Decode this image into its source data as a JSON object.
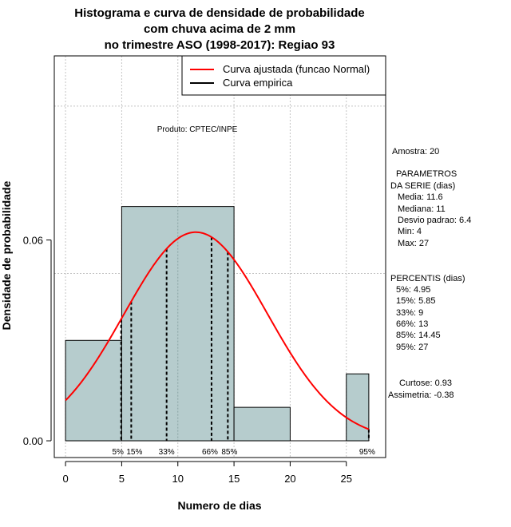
{
  "chart_data": {
    "type": "histogram",
    "title_lines": [
      "Histograma e curva de densidade de probabilidade",
      "com chuva acima de 2 mm",
      "no trimestre ASO (1998-2017): Regiao 93"
    ],
    "xlabel": "Numero de dias",
    "ylabel": "Densidade de probabilidade",
    "xlim": [
      -1,
      28.5
    ],
    "ylim": [
      -0.005,
      0.115
    ],
    "x_ticks": [
      0,
      5,
      10,
      15,
      20,
      25
    ],
    "y_ticks": [
      0.0,
      0.06
    ],
    "y_tick_labels": [
      "0.00",
      "0.06"
    ],
    "grid_x": [
      0,
      5,
      10,
      15,
      20,
      25
    ],
    "grid_y": [
      0.05,
      0.1
    ],
    "bins": [
      {
        "from": 0,
        "to": 5,
        "density": 0.03
      },
      {
        "from": 5,
        "to": 15,
        "density": 0.07
      },
      {
        "from": 15,
        "to": 20,
        "density": 0.01
      },
      {
        "from": 20,
        "to": 25,
        "density": 0.0
      },
      {
        "from": 25,
        "to": 27,
        "density": 0.02
      }
    ],
    "fitted_curve": {
      "name": "Curva ajustada (funcao Normal)",
      "mean": 11.6,
      "sd": 6.4,
      "from": 0,
      "to": 27,
      "color": "#ff0000"
    },
    "empirical_curve": {
      "name": "Curva empirica",
      "color": "#000000"
    },
    "percentiles": [
      {
        "label": "5%",
        "x": 4.95
      },
      {
        "label": "15%",
        "x": 5.85
      },
      {
        "label": "33%",
        "x": 9
      },
      {
        "label": "66%",
        "x": 13
      },
      {
        "label": "85%",
        "x": 14.45
      },
      {
        "label": "95%",
        "x": 27
      }
    ],
    "legend_position": "top-right",
    "product_note": "Produto: CPTEC/INPE",
    "bar_color": "#b6cccd"
  },
  "side_stats": {
    "sample": "Amostra: 20",
    "params_title_1": "PARAMETROS",
    "params_title_2": "DA SERIE (dias)",
    "media": "Media: 11.6",
    "mediana": "Mediana: 11",
    "desvio": "Desvio padrao: 6.4",
    "min": "Min: 4",
    "max": "Max: 27",
    "percentis_title": "PERCENTIS (dias)",
    "p5": "5%: 4.95",
    "p15": "15%: 5.85",
    "p33": "33%: 9",
    "p66": "66%: 13",
    "p85": "85%: 14.45",
    "p95": "95%: 27",
    "curtose": "Curtose: 0.93",
    "assimetria": "Assimetria: -0.38"
  }
}
